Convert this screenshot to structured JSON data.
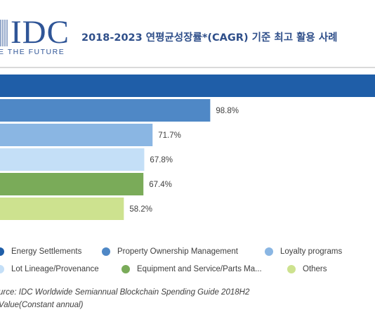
{
  "header": {
    "logo_text": "IDC",
    "logo_tagline": "E THE FUTURE",
    "title": "2018-2023 연평균성장률*(CAGR) 기준 최고 활용 사례"
  },
  "colors": {
    "title": "#2f4f8a",
    "logo": "#2f5597"
  },
  "chart_data": {
    "type": "bar",
    "orientation": "horizontal",
    "categories": [
      "Energy Settlements",
      "Property Ownership Management",
      "Loyalty programs",
      "Lot Lineage/Provenance",
      "Equipment and Service/Parts Ma...",
      "Others"
    ],
    "values": [
      null,
      98.8,
      71.7,
      67.8,
      67.4,
      58.2
    ],
    "value_labels": [
      "",
      "98.8%",
      "71.7%",
      "67.8%",
      "67.4%",
      "58.2%"
    ],
    "colors": [
      "#1f5ea8",
      "#4f88c6",
      "#8ab6e3",
      "#c4dff7",
      "#7aab59",
      "#cde28f"
    ],
    "grid": false,
    "legend_position": "bottom"
  },
  "legend": [
    {
      "label": "Energy Settlements",
      "color": "#1f5ea8"
    },
    {
      "label": "Property Ownership Management",
      "color": "#4f88c6"
    },
    {
      "label": "Loyalty programs",
      "color": "#8ab6e3"
    },
    {
      "label": "Lot Lineage/Provenance",
      "color": "#c4dff7"
    },
    {
      "label": "Equipment and Service/Parts Ma...",
      "color": "#7aab59"
    },
    {
      "label": "Others",
      "color": "#cde28f"
    }
  ],
  "source": {
    "line1": "urce: IDC Worldwide Semiannual Blockchain Spending Guide 2018H2",
    "line2": "Value(Constant annual)"
  }
}
